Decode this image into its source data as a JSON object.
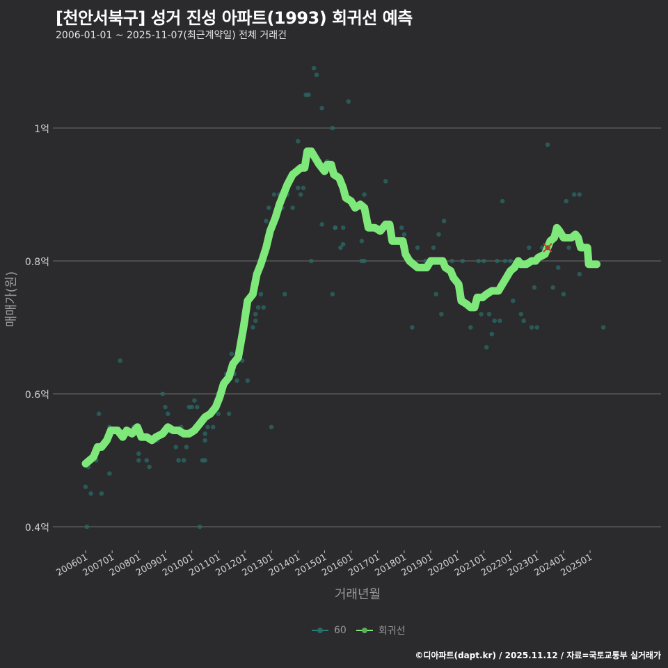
{
  "header": {
    "title": "[천안서북구] 성거 진성 아파트(1993) 회귀선 예측",
    "subtitle": "2006-01-01 ~ 2025-11-07(최근계약일) 전체 거래건"
  },
  "footer": {
    "credit": "©디아파트(dapt.kr) / 2025.11.12 / 자료=국토교통부 실거래가"
  },
  "legend": {
    "items": [
      {
        "label": "60",
        "color": "#2a7f77"
      },
      {
        "label": "회귀선",
        "color": "#7ee87a"
      }
    ]
  },
  "colors": {
    "background": "#2b2a2c",
    "grid": "#6e6e6e",
    "scatter": "#2a6b65",
    "regression": "#7ee87a",
    "marker_x": "#c0392b"
  },
  "chart_data": {
    "type": "scatter",
    "title": "[천안서북구] 성거 진성 아파트(1993) 회귀선 예측",
    "subtitle": "2006-01-01 ~ 2025-11-07(최근계약일) 전체 거래건",
    "xlabel": "거래년월",
    "ylabel": "매매가(원)",
    "ylim": [
      0.37,
      1.1
    ],
    "yticks": [
      {
        "value": 1.0,
        "label": "1억"
      },
      {
        "value": 0.8,
        "label": "0.8억"
      },
      {
        "value": 0.6,
        "label": "0.6억"
      },
      {
        "value": 0.4,
        "label": "0.4억"
      }
    ],
    "xticks": [
      "200601",
      "200701",
      "200801",
      "200901",
      "201001",
      "201101",
      "201201",
      "201301",
      "201401",
      "201501",
      "201601",
      "201701",
      "201801",
      "201901",
      "202001",
      "202101",
      "202201",
      "202301",
      "202401",
      "202501"
    ],
    "grid": "horizontal",
    "legend_position": "bottom",
    "series": [
      {
        "name": "60",
        "kind": "scatter",
        "points": [
          [
            2006.0,
            0.46
          ],
          [
            2006.05,
            0.4
          ],
          [
            2006.1,
            0.49
          ],
          [
            2006.2,
            0.45
          ],
          [
            2006.4,
            0.5
          ],
          [
            2006.5,
            0.57
          ],
          [
            2006.6,
            0.45
          ],
          [
            2006.9,
            0.48
          ],
          [
            2006.9,
            0.55
          ],
          [
            2007.3,
            0.65
          ],
          [
            2007.5,
            0.54
          ],
          [
            2007.8,
            0.55
          ],
          [
            2008.0,
            0.5
          ],
          [
            2008.0,
            0.51
          ],
          [
            2008.3,
            0.5
          ],
          [
            2008.4,
            0.49
          ],
          [
            2008.7,
            0.53
          ],
          [
            2008.9,
            0.6
          ],
          [
            2009.0,
            0.58
          ],
          [
            2009.1,
            0.57
          ],
          [
            2009.4,
            0.52
          ],
          [
            2009.5,
            0.5
          ],
          [
            2009.6,
            0.55
          ],
          [
            2009.7,
            0.5
          ],
          [
            2009.8,
            0.52
          ],
          [
            2009.9,
            0.58
          ],
          [
            2010.0,
            0.58
          ],
          [
            2010.1,
            0.59
          ],
          [
            2010.2,
            0.58
          ],
          [
            2010.3,
            0.4
          ],
          [
            2010.4,
            0.5
          ],
          [
            2010.5,
            0.54
          ],
          [
            2010.5,
            0.53
          ],
          [
            2010.5,
            0.5
          ],
          [
            2010.6,
            0.55
          ],
          [
            2010.8,
            0.55
          ],
          [
            2010.9,
            0.58
          ],
          [
            2011.0,
            0.6
          ],
          [
            2011.0,
            0.57
          ],
          [
            2011.2,
            0.62
          ],
          [
            2011.3,
            0.63
          ],
          [
            2011.4,
            0.57
          ],
          [
            2011.5,
            0.66
          ],
          [
            2011.6,
            0.63
          ],
          [
            2011.7,
            0.62
          ],
          [
            2011.9,
            0.65
          ],
          [
            2012.1,
            0.62
          ],
          [
            2012.3,
            0.7
          ],
          [
            2012.4,
            0.71
          ],
          [
            2012.4,
            0.72
          ],
          [
            2012.5,
            0.73
          ],
          [
            2012.6,
            0.75
          ],
          [
            2012.7,
            0.73
          ],
          [
            2012.8,
            0.86
          ],
          [
            2012.9,
            0.88
          ],
          [
            2012.9,
            0.83
          ],
          [
            2013.0,
            0.85
          ],
          [
            2013.0,
            0.55
          ],
          [
            2013.1,
            0.9
          ],
          [
            2013.3,
            0.9
          ],
          [
            2013.4,
            0.88
          ],
          [
            2013.5,
            0.75
          ],
          [
            2013.6,
            0.9
          ],
          [
            2013.7,
            0.92
          ],
          [
            2013.8,
            0.88
          ],
          [
            2014.0,
            0.98
          ],
          [
            2014.0,
            0.91
          ],
          [
            2014.1,
            0.9
          ],
          [
            2014.2,
            0.91
          ],
          [
            2014.3,
            1.05
          ],
          [
            2014.4,
            1.05
          ],
          [
            2014.5,
            0.8
          ],
          [
            2014.6,
            1.09
          ],
          [
            2014.7,
            1.08
          ],
          [
            2014.8,
            0.95
          ],
          [
            2014.9,
            0.855
          ],
          [
            2014.9,
            1.03
          ],
          [
            2015.1,
            0.95
          ],
          [
            2015.3,
            1.0
          ],
          [
            2015.3,
            0.75
          ],
          [
            2015.4,
            0.85
          ],
          [
            2015.4,
            0.85
          ],
          [
            2015.6,
            0.82
          ],
          [
            2015.7,
            0.85
          ],
          [
            2015.7,
            0.825
          ],
          [
            2015.9,
            1.04
          ],
          [
            2016.4,
            0.8
          ],
          [
            2016.4,
            0.83
          ],
          [
            2016.5,
            0.8
          ],
          [
            2016.5,
            0.9
          ],
          [
            2017.3,
            0.92
          ],
          [
            2017.9,
            0.85
          ],
          [
            2018.0,
            0.84
          ],
          [
            2018.3,
            0.7
          ],
          [
            2018.5,
            0.82
          ],
          [
            2018.8,
            0.8
          ],
          [
            2019.0,
            0.8
          ],
          [
            2019.1,
            0.82
          ],
          [
            2019.2,
            0.75
          ],
          [
            2019.3,
            0.84
          ],
          [
            2019.4,
            0.72
          ],
          [
            2019.5,
            0.86
          ],
          [
            2019.8,
            0.8
          ],
          [
            2020.2,
            0.8
          ],
          [
            2020.5,
            0.7
          ],
          [
            2020.7,
            0.74
          ],
          [
            2020.8,
            0.8
          ],
          [
            2020.9,
            0.72
          ],
          [
            2021.0,
            0.8
          ],
          [
            2021.1,
            0.67
          ],
          [
            2021.2,
            0.72
          ],
          [
            2021.3,
            0.69
          ],
          [
            2021.4,
            0.71
          ],
          [
            2021.5,
            0.8
          ],
          [
            2021.6,
            0.71
          ],
          [
            2021.7,
            0.89
          ],
          [
            2021.8,
            0.8
          ],
          [
            2022.0,
            0.8
          ],
          [
            2022.1,
            0.74
          ],
          [
            2022.3,
            0.8
          ],
          [
            2022.4,
            0.72
          ],
          [
            2022.5,
            0.71
          ],
          [
            2022.7,
            0.82
          ],
          [
            2022.8,
            0.7
          ],
          [
            2022.9,
            0.76
          ],
          [
            2023.0,
            0.7
          ],
          [
            2023.2,
            0.82
          ],
          [
            2023.6,
            0.76
          ],
          [
            2023.8,
            0.79
          ],
          [
            2024.0,
            0.75
          ],
          [
            2024.1,
            0.89
          ],
          [
            2024.2,
            0.82
          ],
          [
            2024.4,
            0.9
          ],
          [
            2024.6,
            0.9
          ],
          [
            2024.6,
            0.78
          ],
          [
            2025.5,
            0.7
          ],
          [
            2023.4,
            0.975
          ]
        ]
      },
      {
        "name": "회귀선",
        "kind": "line",
        "points": [
          [
            2006.0,
            0.495
          ],
          [
            2006.15,
            0.5
          ],
          [
            2006.3,
            0.505
          ],
          [
            2006.45,
            0.52
          ],
          [
            2006.6,
            0.52
          ],
          [
            2006.8,
            0.53
          ],
          [
            2006.95,
            0.545
          ],
          [
            2007.2,
            0.545
          ],
          [
            2007.4,
            0.535
          ],
          [
            2007.55,
            0.545
          ],
          [
            2007.75,
            0.54
          ],
          [
            2007.95,
            0.55
          ],
          [
            2008.1,
            0.535
          ],
          [
            2008.3,
            0.535
          ],
          [
            2008.5,
            0.53
          ],
          [
            2008.65,
            0.535
          ],
          [
            2008.9,
            0.54
          ],
          [
            2009.1,
            0.55
          ],
          [
            2009.3,
            0.545
          ],
          [
            2009.5,
            0.545
          ],
          [
            2009.7,
            0.54
          ],
          [
            2009.9,
            0.54
          ],
          [
            2010.1,
            0.545
          ],
          [
            2010.3,
            0.555
          ],
          [
            2010.5,
            0.565
          ],
          [
            2010.7,
            0.57
          ],
          [
            2010.9,
            0.58
          ],
          [
            2011.05,
            0.595
          ],
          [
            2011.2,
            0.615
          ],
          [
            2011.4,
            0.625
          ],
          [
            2011.55,
            0.645
          ],
          [
            2011.75,
            0.655
          ],
          [
            2011.95,
            0.7
          ],
          [
            2012.1,
            0.74
          ],
          [
            2012.3,
            0.75
          ],
          [
            2012.45,
            0.78
          ],
          [
            2012.6,
            0.795
          ],
          [
            2012.8,
            0.82
          ],
          [
            2012.95,
            0.845
          ],
          [
            2013.15,
            0.865
          ],
          [
            2013.3,
            0.885
          ],
          [
            2013.45,
            0.9
          ],
          [
            2013.6,
            0.915
          ],
          [
            2013.8,
            0.93
          ],
          [
            2013.95,
            0.935
          ],
          [
            2014.1,
            0.94
          ],
          [
            2014.25,
            0.94
          ],
          [
            2014.35,
            0.965
          ],
          [
            2014.5,
            0.965
          ],
          [
            2014.65,
            0.955
          ],
          [
            2014.8,
            0.945
          ],
          [
            2015.0,
            0.935
          ],
          [
            2015.1,
            0.945
          ],
          [
            2015.25,
            0.945
          ],
          [
            2015.35,
            0.93
          ],
          [
            2015.55,
            0.925
          ],
          [
            2015.7,
            0.91
          ],
          [
            2015.8,
            0.895
          ],
          [
            2016.0,
            0.89
          ],
          [
            2016.15,
            0.88
          ],
          [
            2016.35,
            0.885
          ],
          [
            2016.5,
            0.88
          ],
          [
            2016.65,
            0.85
          ],
          [
            2016.9,
            0.85
          ],
          [
            2017.1,
            0.845
          ],
          [
            2017.3,
            0.855
          ],
          [
            2017.45,
            0.855
          ],
          [
            2017.55,
            0.83
          ],
          [
            2017.8,
            0.83
          ],
          [
            2017.95,
            0.83
          ],
          [
            2018.05,
            0.81
          ],
          [
            2018.2,
            0.8
          ],
          [
            2018.35,
            0.795
          ],
          [
            2018.5,
            0.79
          ],
          [
            2018.7,
            0.79
          ],
          [
            2018.85,
            0.79
          ],
          [
            2019.0,
            0.8
          ],
          [
            2019.3,
            0.8
          ],
          [
            2019.45,
            0.8
          ],
          [
            2019.55,
            0.79
          ],
          [
            2019.75,
            0.785
          ],
          [
            2019.85,
            0.775
          ],
          [
            2020.05,
            0.765
          ],
          [
            2020.15,
            0.74
          ],
          [
            2020.35,
            0.735
          ],
          [
            2020.5,
            0.73
          ],
          [
            2020.65,
            0.73
          ],
          [
            2020.75,
            0.745
          ],
          [
            2020.95,
            0.745
          ],
          [
            2021.1,
            0.75
          ],
          [
            2021.3,
            0.755
          ],
          [
            2021.55,
            0.755
          ],
          [
            2021.7,
            0.765
          ],
          [
            2021.85,
            0.775
          ],
          [
            2022.0,
            0.785
          ],
          [
            2022.15,
            0.79
          ],
          [
            2022.3,
            0.8
          ],
          [
            2022.4,
            0.795
          ],
          [
            2022.6,
            0.795
          ],
          [
            2022.8,
            0.8
          ],
          [
            2022.95,
            0.8
          ],
          [
            2023.05,
            0.805
          ],
          [
            2023.3,
            0.81
          ],
          [
            2023.5,
            0.83
          ],
          [
            2023.65,
            0.835
          ],
          [
            2023.75,
            0.85
          ],
          [
            2023.85,
            0.845
          ],
          [
            2024.0,
            0.835
          ],
          [
            2024.3,
            0.835
          ],
          [
            2024.45,
            0.84
          ],
          [
            2024.55,
            0.835
          ],
          [
            2024.65,
            0.82
          ],
          [
            2024.9,
            0.82
          ],
          [
            2024.95,
            0.795
          ],
          [
            2025.25,
            0.795
          ]
        ]
      },
      {
        "name": "예측마커",
        "kind": "marker-x",
        "points": [
          [
            2023.4,
            0.82
          ]
        ]
      }
    ]
  },
  "axes": {
    "x_title": "거래년월",
    "y_title": "매매가(원)"
  }
}
